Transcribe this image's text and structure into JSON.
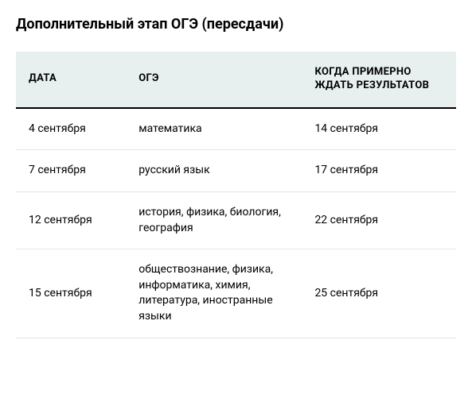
{
  "heading": "Дополнительный этап ОГЭ (пересдачи)",
  "table": {
    "type": "table",
    "header_background": "#e8f0ef",
    "border_color": "#e5e5e5",
    "header_border_color": "#000000",
    "columns": [
      {
        "label": "ДАТА",
        "width_pct": 25
      },
      {
        "label": "ОГЭ",
        "width_pct": 40
      },
      {
        "label": "КОГДА ПРИМЕРНО ЖДАТЬ РЕЗУЛЬТАТОВ",
        "width_pct": 35
      }
    ],
    "rows": [
      {
        "date": "4 сентября",
        "subject": "математика",
        "results": "14 сентября"
      },
      {
        "date": "7 сентября",
        "subject": "русский язык",
        "results": "17 сентября"
      },
      {
        "date": "12 сентября",
        "subject": "история, физика, биология, география",
        "results": "22 сентября"
      },
      {
        "date": "15 сентября",
        "subject": "обществознание, физика, информатика, химия, литература, иностранные языки",
        "results": "25 сентября"
      }
    ]
  },
  "style": {
    "background_color": "#ffffff",
    "text_color": "#000000",
    "heading_fontsize": 18,
    "header_fontsize": 13,
    "cell_fontsize": 14
  }
}
